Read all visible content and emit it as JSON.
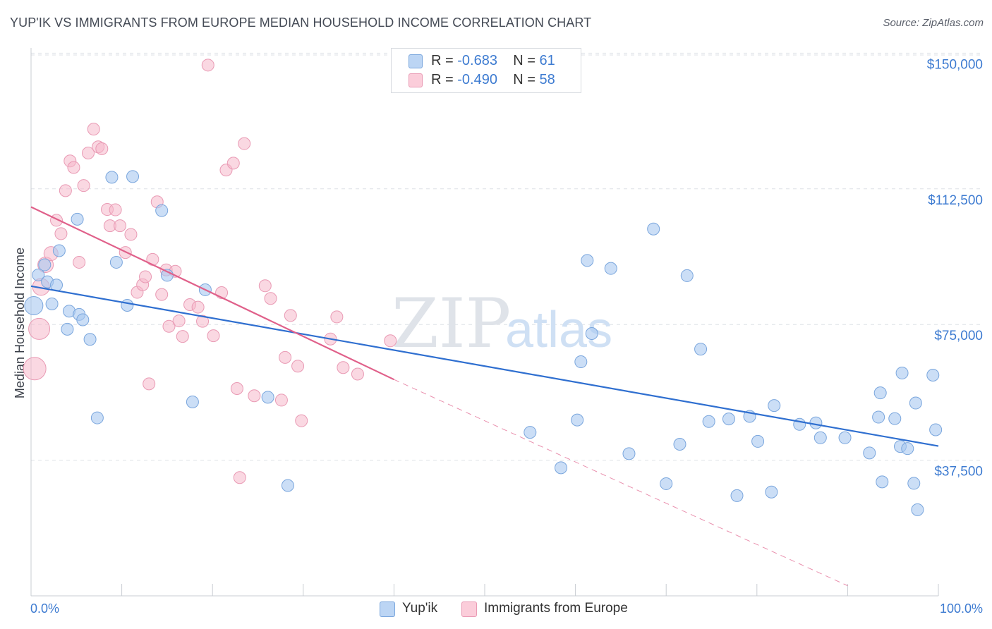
{
  "header": {
    "title": "YUP'IK VS IMMIGRANTS FROM EUROPE MEDIAN HOUSEHOLD INCOME CORRELATION CHART",
    "source": "Source: ZipAtlas.com"
  },
  "legend": {
    "rows": [
      {
        "r_label": "R = ",
        "r_value": "-0.683",
        "n_label": "N = ",
        "n_value": "61"
      },
      {
        "r_label": "R = ",
        "r_value": "-0.490",
        "n_label": "N = ",
        "n_value": "58"
      }
    ],
    "bottom": [
      "Yup'ik",
      "Immigrants from Europe"
    ]
  },
  "watermark": {
    "zip": "ZIP",
    "atlas": "atlas"
  },
  "colors": {
    "blue_fill": "#a9c8f0",
    "blue_stroke": "#7aa6dd",
    "blue_line": "#2f6fd0",
    "pink_fill": "#f6b8cb",
    "pink_stroke": "#e99ab4",
    "pink_line": "#e0608a",
    "accent_text": "#3d7bd1",
    "grid": "#dde1e6"
  },
  "chart_data": {
    "type": "scatter",
    "title": "YUP'IK VS IMMIGRANTS FROM EUROPE MEDIAN HOUSEHOLD INCOME CORRELATION CHART",
    "xlabel": "",
    "ylabel": "Median Household Income",
    "xlim": [
      0,
      100
    ],
    "ylim": [
      0,
      153000
    ],
    "x_tick_labels": [
      "0.0%",
      "100.0%"
    ],
    "y_ticks": [
      37500,
      75000,
      112500,
      150000
    ],
    "y_tick_labels": [
      "$37,500",
      "$75,000",
      "$112,500",
      "$150,000"
    ],
    "grid": true,
    "legend_position": "top-center",
    "series": [
      {
        "name": "Yup'ik",
        "color": "#a9c8f0",
        "r": -0.683,
        "n": 61,
        "trend": {
          "x": [
            0,
            100
          ],
          "y": [
            85600,
            41400
          ]
        },
        "points": [
          [
            0.8,
            88700
          ],
          [
            0.3,
            80200
          ],
          [
            1.5,
            91500
          ],
          [
            1.8,
            86800
          ],
          [
            2.3,
            80700
          ],
          [
            2.8,
            85900
          ],
          [
            3.1,
            95400
          ],
          [
            4.0,
            73700
          ],
          [
            4.2,
            78700
          ],
          [
            5.3,
            77800
          ],
          [
            5.7,
            76300
          ],
          [
            6.5,
            70900
          ],
          [
            5.1,
            104100
          ],
          [
            7.3,
            49200
          ],
          [
            8.9,
            115700
          ],
          [
            9.4,
            92200
          ],
          [
            10.6,
            80300
          ],
          [
            11.2,
            115900
          ],
          [
            14.4,
            106500
          ],
          [
            15.0,
            88600
          ],
          [
            17.8,
            53600
          ],
          [
            19.2,
            84600
          ],
          [
            26.1,
            54900
          ],
          [
            28.3,
            30500
          ],
          [
            55.0,
            45200
          ],
          [
            58.4,
            35400
          ],
          [
            60.2,
            48600
          ],
          [
            60.6,
            64700
          ],
          [
            61.3,
            92700
          ],
          [
            61.8,
            72500
          ],
          [
            63.9,
            90500
          ],
          [
            65.9,
            39300
          ],
          [
            68.6,
            101400
          ],
          [
            70.0,
            31000
          ],
          [
            71.5,
            41900
          ],
          [
            72.3,
            88500
          ],
          [
            73.8,
            68200
          ],
          [
            74.7,
            48200
          ],
          [
            76.9,
            48900
          ],
          [
            77.8,
            27700
          ],
          [
            79.2,
            49600
          ],
          [
            80.1,
            42700
          ],
          [
            81.6,
            28700
          ],
          [
            81.9,
            52600
          ],
          [
            84.7,
            47400
          ],
          [
            86.5,
            47800
          ],
          [
            87.0,
            43700
          ],
          [
            89.7,
            43700
          ],
          [
            92.4,
            39500
          ],
          [
            93.4,
            49400
          ],
          [
            93.6,
            56100
          ],
          [
            93.8,
            31500
          ],
          [
            95.2,
            49000
          ],
          [
            95.8,
            41300
          ],
          [
            96.0,
            61600
          ],
          [
            96.6,
            40700
          ],
          [
            97.3,
            31100
          ],
          [
            97.5,
            53300
          ],
          [
            97.7,
            23800
          ],
          [
            99.4,
            61000
          ],
          [
            99.7,
            45900
          ]
        ]
      },
      {
        "name": "Immigrants from Europe",
        "color": "#f6b8cb",
        "r": -0.49,
        "n": 58,
        "trend": {
          "x": [
            0,
            40
          ],
          "y": [
            107500,
            59800
          ]
        },
        "trend_extension": {
          "x": [
            40,
            90
          ],
          "y": [
            59800,
            2800
          ]
        },
        "points": [
          [
            0.4,
            62800
          ],
          [
            0.9,
            73800
          ],
          [
            1.1,
            85400
          ],
          [
            1.6,
            91500
          ],
          [
            2.2,
            94600
          ],
          [
            2.8,
            103800
          ],
          [
            3.3,
            100100
          ],
          [
            3.8,
            112000
          ],
          [
            4.3,
            120200
          ],
          [
            4.7,
            118400
          ],
          [
            5.3,
            92200
          ],
          [
            5.8,
            113400
          ],
          [
            6.3,
            122400
          ],
          [
            6.9,
            129000
          ],
          [
            7.4,
            124100
          ],
          [
            7.8,
            123600
          ],
          [
            8.4,
            106800
          ],
          [
            8.7,
            102300
          ],
          [
            9.3,
            106700
          ],
          [
            9.8,
            102300
          ],
          [
            10.4,
            94900
          ],
          [
            11.0,
            99900
          ],
          [
            11.7,
            83900
          ],
          [
            12.3,
            86000
          ],
          [
            12.6,
            88200
          ],
          [
            13.0,
            58600
          ],
          [
            13.4,
            93000
          ],
          [
            13.9,
            108900
          ],
          [
            14.4,
            83300
          ],
          [
            14.9,
            90100
          ],
          [
            15.2,
            74500
          ],
          [
            15.9,
            89700
          ],
          [
            16.3,
            76000
          ],
          [
            16.7,
            71700
          ],
          [
            17.5,
            80500
          ],
          [
            18.4,
            79800
          ],
          [
            18.9,
            75900
          ],
          [
            19.5,
            146700
          ],
          [
            20.1,
            71900
          ],
          [
            21.0,
            83800
          ],
          [
            21.5,
            117700
          ],
          [
            22.3,
            119600
          ],
          [
            22.7,
            57300
          ],
          [
            23.0,
            32700
          ],
          [
            23.5,
            125000
          ],
          [
            24.6,
            55300
          ],
          [
            25.8,
            85700
          ],
          [
            26.4,
            82200
          ],
          [
            27.6,
            54100
          ],
          [
            28.0,
            65900
          ],
          [
            28.6,
            77500
          ],
          [
            29.4,
            63500
          ],
          [
            29.8,
            48400
          ],
          [
            33.0,
            71000
          ],
          [
            33.7,
            77100
          ],
          [
            34.4,
            63100
          ],
          [
            36.0,
            61300
          ],
          [
            39.6,
            70500
          ]
        ]
      }
    ]
  }
}
